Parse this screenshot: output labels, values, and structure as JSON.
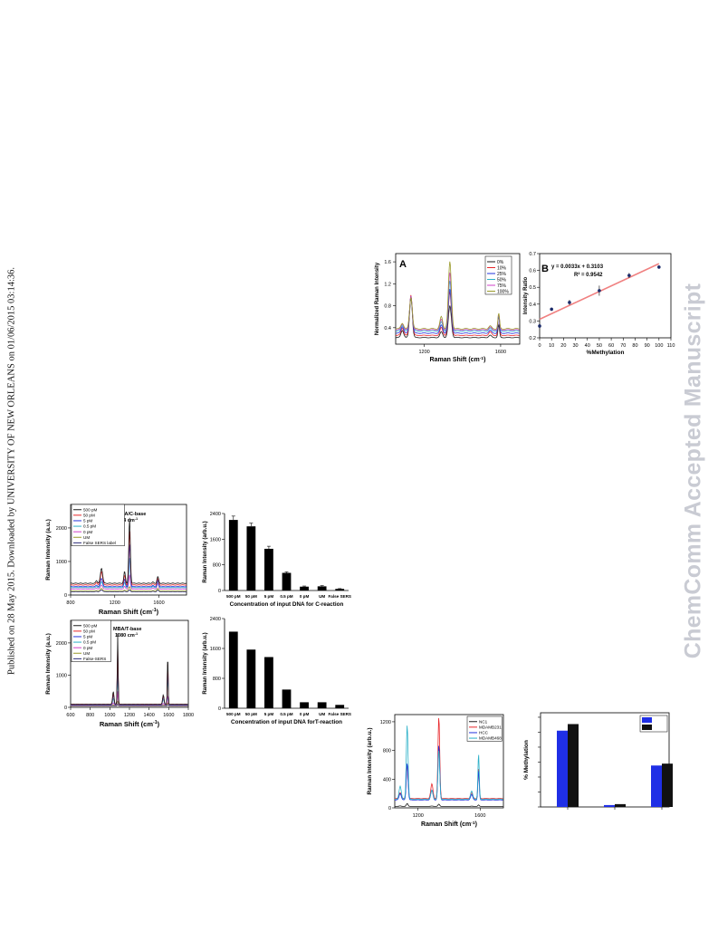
{
  "side_note": "Published on 28 May 2015. Downloaded by UNIVERSITY OF NEW ORLEANS on 01/06/2015 03:14:36.",
  "watermark": "ChemComm Accepted Manuscript",
  "colors": {
    "black": "#1a1a1a",
    "red": "#e8262a",
    "blue": "#2233dd",
    "cyan": "#2ab0c8",
    "magenta": "#d040c8",
    "olive": "#9a9a2a",
    "navy": "#2a2a7a",
    "pink": "#f08cc8",
    "purple": "#7a2a9a",
    "fit": "#f08080",
    "bar_blue": "#1f2fe6",
    "bar_black": "#111111"
  },
  "panelA": {
    "label": "A",
    "ylabel": "Normalized Raman Intensity",
    "xlabel_main": "Raman Shift (cm",
    "xlabel_sup": "-1",
    "xlabel_end": ")",
    "xticks": [
      "1200",
      "1600"
    ],
    "yticks": [
      "0.4",
      "0.8",
      "1.2",
      "1.6"
    ],
    "legend": [
      "0%",
      "10%",
      "25%",
      "50%",
      "75%",
      "100%"
    ],
    "legend_colors": [
      "#1a1a1a",
      "#e8262a",
      "#2233dd",
      "#2ab0c8",
      "#d040c8",
      "#9a9a2a"
    ]
  },
  "panelB": {
    "label": "B",
    "equation": "y = 0.0033x + 0.3103",
    "r2": "R² = 0.9542",
    "ylabel": "Intensity Ratio",
    "xlabel": "%Methylation",
    "xticks": [
      "0",
      "10",
      "20",
      "30",
      "40",
      "50",
      "60",
      "70",
      "80",
      "90",
      "100",
      "110"
    ],
    "yticks": [
      "0.2",
      "0.3",
      "0.4",
      "0.5",
      "0.6",
      "0.7"
    ]
  },
  "panelC": {
    "annotation1": "MNBA/C-base",
    "annotation2": "1334 cm",
    "annotation2_sup": "-1",
    "ylabel": "Raman Intensity (a.u.)",
    "xlabel_main": "Raman Shift (cm",
    "xlabel_sup": "-1",
    "xlabel_end": ")",
    "xticks": [
      "800",
      "1200",
      "1600"
    ],
    "yticks": [
      "0",
      "1000",
      "2000"
    ],
    "legend": [
      "500 pM",
      "50 pM",
      "5 pM",
      "0.5 pM",
      "0 pM",
      "UM",
      "False SERS label"
    ],
    "legend_colors": [
      "#1a1a1a",
      "#e8262a",
      "#2233dd",
      "#2ab0c8",
      "#d040c8",
      "#9a9a2a",
      "#2a2a7a"
    ]
  },
  "panelD": {
    "annotation1": "MBA/T-base",
    "annotation2": "1080 cm",
    "annotation2_sup": "-1",
    "ylabel": "Raman Intensity (a.u.)",
    "xlabel_main": "Raman Shift (cm",
    "xlabel_sup": "-1",
    "xlabel_end": ")",
    "xticks": [
      "600",
      "800",
      "1000",
      "1200",
      "1400",
      "1600",
      "1800"
    ],
    "yticks": [
      "0",
      "1000",
      "2000"
    ],
    "legend": [
      "500 pM",
      "50 pM",
      "5 pM",
      "0.5 pM",
      "0 pM",
      "UM",
      "False-SERS"
    ],
    "legend_colors": [
      "#1a1a1a",
      "#e8262a",
      "#2233dd",
      "#2ab0c8",
      "#d040c8",
      "#9a9a2a",
      "#2a2a7a"
    ]
  },
  "panelE": {
    "ylabel": "Raman Intensity (arb.u.)",
    "xlabel": "Raman Shift (cm",
    "xlabel_sup": "-1",
    "xlabel_end": ")",
    "xticks": [
      "1200",
      "1600"
    ],
    "yticks": [
      "0",
      "400",
      "800",
      "1200"
    ],
    "legend": [
      "NC1",
      "MDAMB231",
      "HCC",
      "MDAMB468"
    ],
    "legend_colors": [
      "#1a1a1a",
      "#e8262a",
      "#2233dd",
      "#2ab0c8"
    ]
  },
  "panelF": {
    "ylabel": "% Methylation"
  },
  "chart_data": [
    {
      "id": "A",
      "type": "line",
      "ylabel": "Normalized Raman Intensity",
      "xlabel": "Raman Shift (cm-1)",
      "xlim": [
        1050,
        1700
      ],
      "ylim": [
        0.1,
        1.75
      ],
      "peaks": [
        1130,
        1334,
        1590
      ],
      "series": [
        {
          "name": "0%",
          "peak_heights": [
            0.95,
            0.8,
            0.45
          ],
          "baseline": 0.22
        },
        {
          "name": "10%",
          "peak_heights": [
            1.0,
            1.05,
            0.62
          ],
          "baseline": 0.26
        },
        {
          "name": "25%",
          "peak_heights": [
            0.98,
            1.1,
            0.6
          ],
          "baseline": 0.3
        },
        {
          "name": "50%",
          "peak_heights": [
            0.97,
            1.25,
            0.62
          ],
          "baseline": 0.34
        },
        {
          "name": "75%",
          "peak_heights": [
            0.98,
            1.4,
            0.64
          ],
          "baseline": 0.36
        },
        {
          "name": "100%",
          "peak_heights": [
            0.96,
            1.6,
            0.66
          ],
          "baseline": 0.38
        }
      ]
    },
    {
      "id": "B",
      "type": "scatter",
      "xlabel": "%Methylation",
      "ylabel": "Intensity Ratio",
      "xlim": [
        0,
        110
      ],
      "ylim": [
        0.2,
        0.7
      ],
      "points": [
        {
          "x": 0,
          "y": 0.27,
          "err": 0.01
        },
        {
          "x": 10,
          "y": 0.37,
          "err": 0.01
        },
        {
          "x": 25,
          "y": 0.41,
          "err": 0.015
        },
        {
          "x": 50,
          "y": 0.48,
          "err": 0.03
        },
        {
          "x": 75,
          "y": 0.57,
          "err": 0.015
        },
        {
          "x": 100,
          "y": 0.62,
          "err": 0.01
        }
      ],
      "fit": {
        "slope": 0.0033,
        "intercept": 0.3103,
        "r2": 0.9542
      }
    },
    {
      "id": "C",
      "type": "line",
      "xlabel": "Raman Shift (cm-1)",
      "ylabel": "Raman Intensity (a.u.)",
      "xlim": [
        800,
        1850
      ],
      "ylim": [
        0,
        2700
      ],
      "peaks": [
        1080,
        1334,
        1590
      ],
      "series": [
        {
          "name": "500 pM",
          "peak_heights": [
            800,
            2300,
            550
          ],
          "baseline": 350
        },
        {
          "name": "50 pM",
          "peak_heights": [
            700,
            1900,
            500
          ],
          "baseline": 300
        },
        {
          "name": "5 pM",
          "peak_heights": [
            500,
            1500,
            450
          ],
          "baseline": 250
        },
        {
          "name": "0.5 pM",
          "peak_heights": [
            400,
            1100,
            400
          ],
          "baseline": 220
        },
        {
          "name": "0 pM",
          "peak_heights": [
            300,
            600,
            350
          ],
          "baseline": 180
        },
        {
          "name": "UM",
          "peak_heights": [
            200,
            250,
            200
          ],
          "baseline": 120
        },
        {
          "name": "False SERS label",
          "peak_heights": [
            150,
            150,
            150
          ],
          "baseline": 100
        }
      ]
    },
    {
      "id": "C-bar",
      "type": "bar",
      "xlabel": "Concentration of input DNA for C-reaction",
      "ylabel": "Raman Intensity (arb.u.)",
      "ylim": [
        0,
        2400
      ],
      "categories": [
        "500 pM",
        "50 pM",
        "5 pM",
        "0.5 pM",
        "0 pM",
        "UM",
        "False SERS"
      ],
      "values": [
        2200,
        2000,
        1300,
        550,
        120,
        130,
        50
      ],
      "errors": [
        120,
        100,
        80,
        30,
        20,
        20,
        10
      ],
      "yticks": [
        "0",
        "800",
        "1600",
        "2400"
      ]
    },
    {
      "id": "D",
      "type": "line",
      "xlabel": "Raman Shift (cm-1)",
      "ylabel": "Raman Intensity (a.u.)",
      "xlim": [
        600,
        1800
      ],
      "ylim": [
        0,
        2700
      ],
      "peaks": [
        1080,
        1590
      ],
      "series": [
        {
          "name": "500 pM",
          "peak_heights": [
            2300,
            1700
          ],
          "baseline": 100
        },
        {
          "name": "50 pM",
          "peak_heights": [
            2000,
            1600
          ],
          "baseline": 90
        },
        {
          "name": "5 pM",
          "peak_heights": [
            1800,
            1500
          ],
          "baseline": 80
        },
        {
          "name": "0.5 pM",
          "peak_heights": [
            1200,
            1100
          ],
          "baseline": 70
        },
        {
          "name": "0 pM",
          "peak_heights": [
            500,
            400
          ],
          "baseline": 60
        },
        {
          "name": "UM",
          "peak_heights": [
            200,
            150
          ],
          "baseline": 50
        },
        {
          "name": "False-SERS",
          "peak_heights": [
            100,
            100
          ],
          "baseline": 40
        }
      ]
    },
    {
      "id": "D-bar",
      "type": "bar",
      "xlabel": "Concentration of input DNA forT-reaction",
      "ylabel": "Raman Intensity (arb.u.)",
      "ylim": [
        0,
        2400
      ],
      "categories": [
        "500 pM",
        "50 pM",
        "5 pM",
        "0.5 pM",
        "0 pM",
        "UM",
        "False SERS"
      ],
      "values": [
        2050,
        1570,
        1370,
        500,
        160,
        160,
        90
      ],
      "yticks": [
        "0",
        "800",
        "1600",
        "2400"
      ]
    },
    {
      "id": "E",
      "type": "line",
      "xlabel": "Raman Shift (cm-1)",
      "ylabel": "Raman Intensity (arb.u.)",
      "xlim": [
        1050,
        1750
      ],
      "ylim": [
        0,
        1300
      ],
      "peaks": [
        1130,
        1334,
        1590
      ],
      "series": [
        {
          "name": "NC1",
          "peak_heights": [
            60,
            50,
            40
          ],
          "baseline": 20
        },
        {
          "name": "MDAMB231",
          "peak_heights": [
            600,
            1260,
            550
          ],
          "baseline": 130
        },
        {
          "name": "HCC",
          "peak_heights": [
            620,
            870,
            520
          ],
          "baseline": 110
        },
        {
          "name": "MDAMB468",
          "peak_heights": [
            1150,
            800,
            750
          ],
          "baseline": 120
        }
      ]
    },
    {
      "id": "F",
      "type": "bar",
      "ylabel": "% Methylation",
      "ylim": [
        0,
        100
      ],
      "categories": [
        "",
        "",
        ""
      ],
      "series": [
        {
          "values": [
            81,
            2,
            44
          ]
        },
        {
          "values": [
            88,
            3,
            46
          ]
        }
      ]
    }
  ]
}
